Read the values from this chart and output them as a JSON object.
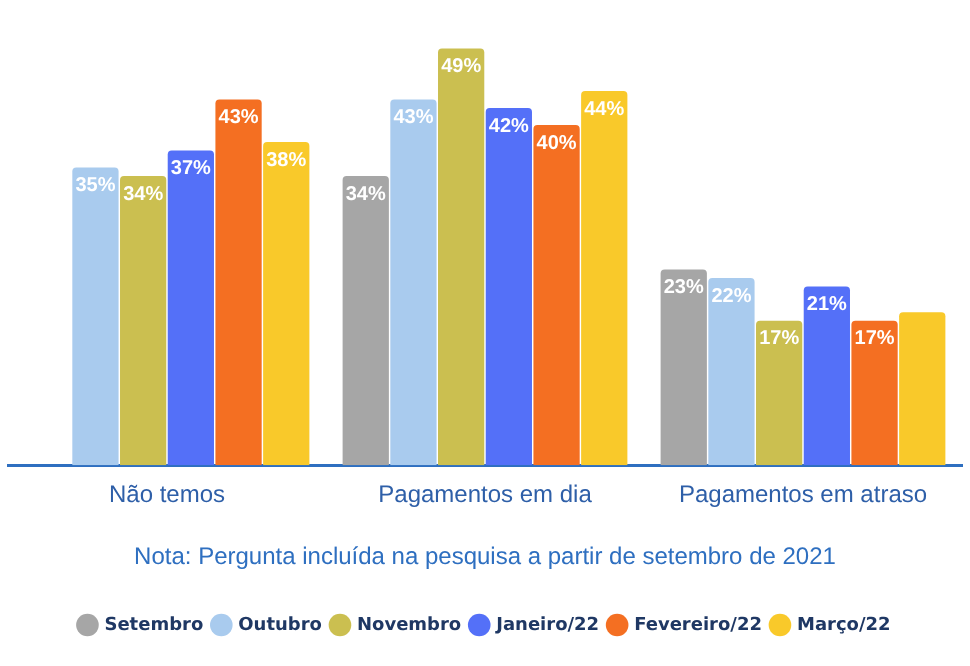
{
  "chart_data": {
    "type": "bar",
    "categories": [
      "Não temos",
      "Pagamentos em dia",
      "Pagamentos em atraso"
    ],
    "series": [
      {
        "name": "Setembro",
        "color": "#a6a6a6",
        "values": [
          null,
          34,
          23
        ],
        "value_labels": [
          null,
          "34%",
          "23%"
        ]
      },
      {
        "name": "Outubro",
        "color": "#a9cbee",
        "values": [
          35,
          43,
          22
        ],
        "value_labels": [
          "35%",
          "43%",
          "22%"
        ]
      },
      {
        "name": "Novembro",
        "color": "#cbbf50",
        "values": [
          34,
          49,
          17
        ],
        "value_labels": [
          "34%",
          "49%",
          "17%"
        ]
      },
      {
        "name": "Janeiro/22",
        "color": "#5470f8",
        "values": [
          37,
          42,
          21
        ],
        "value_labels": [
          "37%",
          "42%",
          "21%"
        ]
      },
      {
        "name": "Fevereiro/22",
        "color": "#f46f22",
        "values": [
          43,
          40,
          17
        ],
        "value_labels": [
          "43%",
          "40%",
          "17%"
        ]
      },
      {
        "name": "Março/22",
        "color": "#f9c92a",
        "values": [
          38,
          44,
          18
        ],
        "value_labels": [
          "38%",
          "44%",
          null
        ]
      }
    ],
    "legend": "bottom",
    "grid": false,
    "annotations": [
      "Nota: Pergunta incluída na pesquisa a partir de setembro de 2021"
    ]
  }
}
